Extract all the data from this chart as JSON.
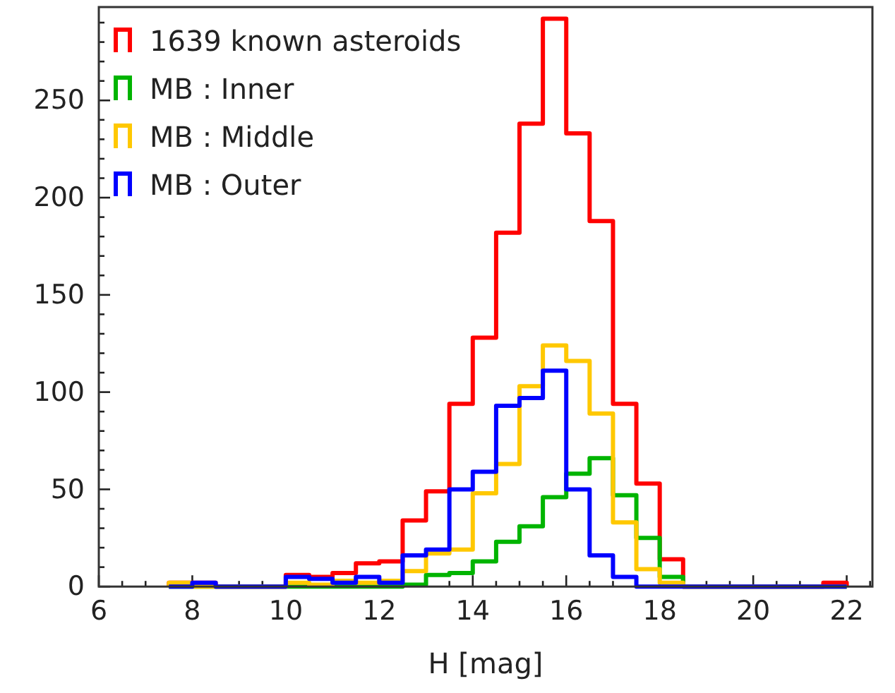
{
  "chart_data": {
    "type": "histogram",
    "xlabel": "H [mag]",
    "bins": [
      7.5,
      8,
      8.5,
      9,
      9.5,
      10,
      10.5,
      11,
      11.5,
      12,
      12.5,
      13,
      13.5,
      14,
      14.5,
      15,
      15.5,
      16,
      16.5,
      17,
      17.5,
      18,
      18.5,
      19,
      19.5,
      20,
      20.5,
      21,
      21.5,
      22
    ],
    "series": [
      {
        "name": "1639 known asteroids",
        "color": "#ff0000",
        "values": [
          2,
          2,
          0,
          0,
          0,
          6,
          5,
          7,
          12,
          13,
          34,
          49,
          94,
          128,
          182,
          238,
          292,
          233,
          188,
          94,
          53,
          14,
          0,
          0,
          0,
          0,
          0,
          0,
          2
        ]
      },
      {
        "name": "MB : Inner",
        "color": "#00b400",
        "values": [
          0,
          0,
          0,
          0,
          0,
          0,
          0,
          0,
          0,
          0,
          1,
          6,
          7,
          13,
          23,
          31,
          46,
          58,
          66,
          47,
          25,
          5,
          0,
          0,
          0,
          0,
          0,
          0,
          0
        ]
      },
      {
        "name": "MB : Middle",
        "color": "#ffc800",
        "values": [
          2,
          0,
          0,
          0,
          0,
          2,
          1,
          3,
          2,
          3,
          8,
          17,
          19,
          48,
          63,
          103,
          124,
          116,
          89,
          33,
          9,
          2,
          0,
          0,
          0,
          0,
          0,
          0,
          0
        ]
      },
      {
        "name": "MB : Outer",
        "color": "#0000ff",
        "values": [
          0,
          2,
          0,
          0,
          0,
          5,
          4,
          2,
          5,
          2,
          16,
          19,
          50,
          59,
          93,
          97,
          111,
          50,
          16,
          5,
          0,
          0,
          0,
          0,
          0,
          0,
          0,
          0,
          0
        ]
      }
    ],
    "xlim": [
      6,
      22.55
    ],
    "ylim": [
      0,
      298
    ],
    "xticks": [
      6,
      {
        "value": 6.5,
        "label": null
      },
      {
        "value": 7,
        "label": null
      },
      {
        "value": 7.5,
        "label": null
      },
      8,
      {
        "value": 8.5,
        "label": null
      },
      {
        "value": 9,
        "label": null
      },
      {
        "value": 9.5,
        "label": null
      },
      10,
      {
        "value": 10.5,
        "label": null
      },
      {
        "value": 11,
        "label": null
      },
      {
        "value": 11.5,
        "label": null
      },
      12,
      {
        "value": 12.5,
        "label": null
      },
      {
        "value": 13,
        "label": null
      },
      {
        "value": 13.5,
        "label": null
      },
      14,
      {
        "value": 14.5,
        "label": null
      },
      {
        "value": 15,
        "label": null
      },
      {
        "value": 15.5,
        "label": null
      },
      16,
      {
        "value": 16.5,
        "label": null
      },
      {
        "value": 17,
        "label": null
      },
      {
        "value": 17.5,
        "label": null
      },
      18,
      {
        "value": 18.5,
        "label": null
      },
      {
        "value": 19,
        "label": null
      },
      {
        "value": 19.5,
        "label": null
      },
      20,
      {
        "value": 20.5,
        "label": null
      },
      {
        "value": 21,
        "label": null
      },
      {
        "value": 21.5,
        "label": null
      },
      22,
      {
        "value": 22.5,
        "label": null
      }
    ],
    "yticks": [
      0,
      {
        "value": 10,
        "label": null
      },
      {
        "value": 20,
        "label": null
      },
      {
        "value": 30,
        "label": null
      },
      {
        "value": 40,
        "label": null
      },
      50,
      {
        "value": 60,
        "label": null
      },
      {
        "value": 70,
        "label": null
      },
      {
        "value": 80,
        "label": null
      },
      {
        "value": 90,
        "label": null
      },
      100,
      {
        "value": 110,
        "label": null
      },
      {
        "value": 120,
        "label": null
      },
      {
        "value": 130,
        "label": null
      },
      {
        "value": 140,
        "label": null
      },
      150,
      {
        "value": 160,
        "label": null
      },
      {
        "value": 170,
        "label": null
      },
      {
        "value": 180,
        "label": null
      },
      {
        "value": 190,
        "label": null
      },
      200,
      {
        "value": 210,
        "label": null
      },
      {
        "value": 220,
        "label": null
      },
      {
        "value": 230,
        "label": null
      },
      {
        "value": 240,
        "label": null
      },
      250,
      {
        "value": 260,
        "label": null
      },
      {
        "value": 270,
        "label": null
      },
      {
        "value": 280,
        "label": null
      },
      {
        "value": 290,
        "label": null
      }
    ],
    "legend": "top left",
    "grid": false
  }
}
